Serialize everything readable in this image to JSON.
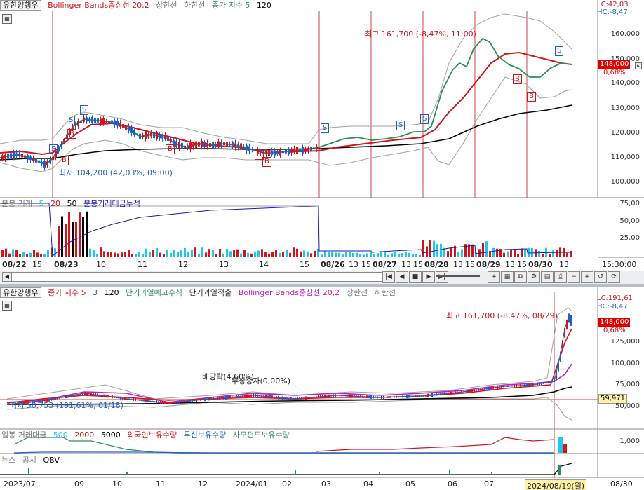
{
  "top": {
    "header": {
      "stock_name": "유한양행우",
      "bb_label": "Bollinger Bands중심선 20,2",
      "upper": "상한선",
      "lower": "하한선",
      "ma_label": "종가 지수 5",
      "ma_long": "120"
    },
    "lc": "LC:42,03",
    "hc": "HC:-8,47",
    "y_ticks": [
      "160,000",
      "150,000",
      "140,000",
      "130,000",
      "120,000",
      "110,000",
      "100,000"
    ],
    "price_badge": "148,000",
    "pct_badge": "0,68%",
    "high_annot": "최고 161,700 (-8,47%, 11:00)",
    "low_annot": "최저 104,200 (42,03%, 09:00)",
    "volume_header": {
      "label": "분봉 거래",
      "p5": "5",
      "p20": "20",
      "p50": "50",
      "cum": "분봉거래대금누적"
    },
    "vol_ticks": [
      "75,00",
      "50,00",
      "25,00"
    ],
    "x_labels": [
      "08/22",
      "15",
      "08/23",
      "10",
      "11",
      "12",
      "13",
      "14",
      "15",
      "08/26",
      "13",
      "15",
      "08/27",
      "13",
      "15",
      "08/28",
      "13",
      "15",
      "08/29",
      "13",
      "15",
      "08/30",
      "13"
    ],
    "time_label": "15:30:00",
    "markers_s": [
      "S",
      "S",
      "S",
      "S",
      "S",
      "S",
      "S"
    ],
    "markers_b": [
      "B",
      "B",
      "B",
      "B",
      "B",
      "B",
      "B"
    ]
  },
  "bottom": {
    "header": {
      "stock_name": "유한양행우",
      "ma_label": "종가 지수 5",
      "ma_p3": "3",
      "ma_p120": "120",
      "ind1": "단기과열예고수식",
      "ind2": "단기과열적출",
      "bb_label": "Bollinger Bands중심선 20,2",
      "upper": "상한선",
      "lower": "하한선"
    },
    "lc": "LC:191,61",
    "hc": "HC:-8,47",
    "y_ticks": [
      "125,000",
      "100,000",
      "75,000",
      "50,000"
    ],
    "price_badge": "148,000",
    "pct_badge": "0,68%",
    "ref_badge": "59,971",
    "high_annot": "최고 161,700 (-8,47%, 08/29)",
    "low_annot": "최저 50,753 (191,61%, 01/18)",
    "annot1": "배당락(4,60%)",
    "annot2": "무상증자(0,00%)",
    "vol_header": {
      "label": "일봉 거래대금",
      "p500": "500",
      "p2000": "2000",
      "p5000": "5000",
      "foreign": "외국인보유수량",
      "trust": "투신보유수량",
      "fund": "사모펀드보유수량"
    },
    "vol_tick": "1,000",
    "obv_header": {
      "news": "뉴스",
      "notice": "공시",
      "obv": "OBV"
    },
    "x_labels": [
      "2023/07",
      "09",
      "10",
      "11",
      "12",
      "2024/01",
      "02",
      "03",
      "04",
      "05",
      "06",
      "07",
      "08/30"
    ],
    "date_badge": "2024/08/19(월)"
  },
  "colors": {
    "bb_center": "#d0151c",
    "ma5": "#2e8b57",
    "ma120": "#000000",
    "up": "#d0151c",
    "down": "#1d5fd0",
    "vol_cyan": "#1ec8e8",
    "cum_line": "#1a1aa8",
    "badge_red": "#e00000"
  }
}
